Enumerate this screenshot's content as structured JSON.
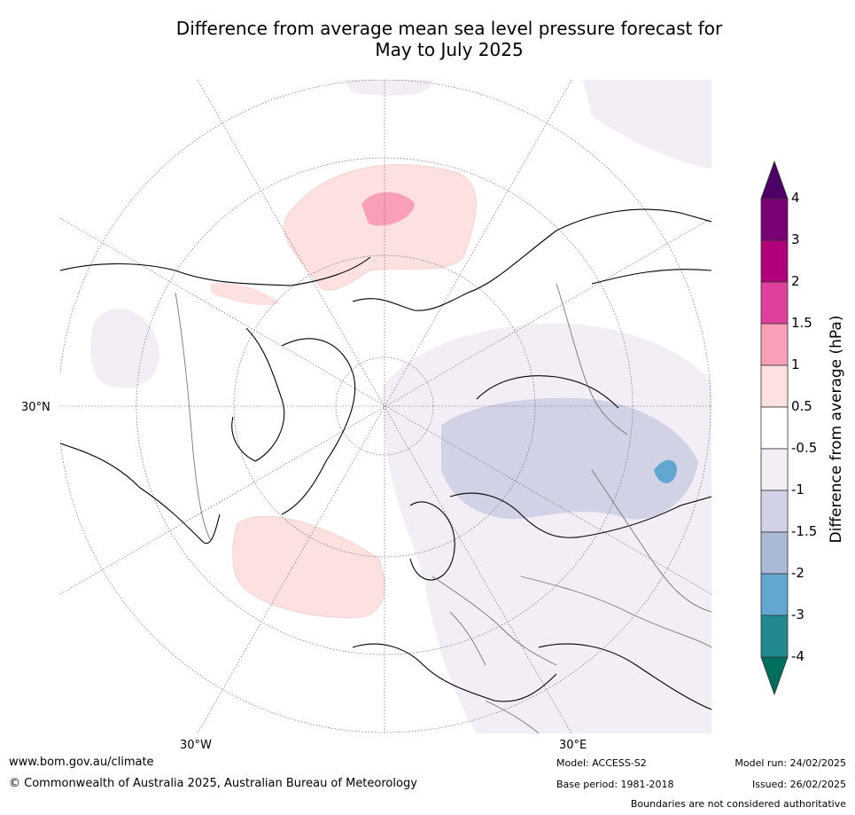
{
  "title_line1": "Difference from average mean sea level pressure forecast for",
  "title_line2": "May to July 2025",
  "grid_labels": {
    "lat_30n": "30°N",
    "lon_30w": "30°W",
    "lon_30e": "30°E"
  },
  "colorbar": {
    "title": "Difference from average (hPa)",
    "ticks": [
      "4",
      "3",
      "2",
      "1.5",
      "1",
      "0.5",
      "-0.5",
      "-1",
      "-1.5",
      "-2",
      "-3",
      "-4"
    ],
    "colors_top_to_bottom": [
      "#7a0076",
      "#b0007a",
      "#e0409c",
      "#f9a0b8",
      "#fde0e0",
      "#ffffff",
      "#f3edf5",
      "#d1d2e5",
      "#a9b9d6",
      "#62a7cf",
      "#21898f"
    ],
    "over_color": "#4b0066",
    "under_color": "#006e5d"
  },
  "footer": {
    "website": "www.bom.gov.au/climate",
    "copyright": "© Commonwealth of Australia 2025, Australian Bureau of Meteorology",
    "model": "Model: ACCESS-S2",
    "base_period": "Base period: 1981-2018",
    "model_run": "Model run: 24/02/2025",
    "issued": "Issued: 26/02/2025",
    "boundaries_note": "Boundaries are not considered authoritative"
  }
}
